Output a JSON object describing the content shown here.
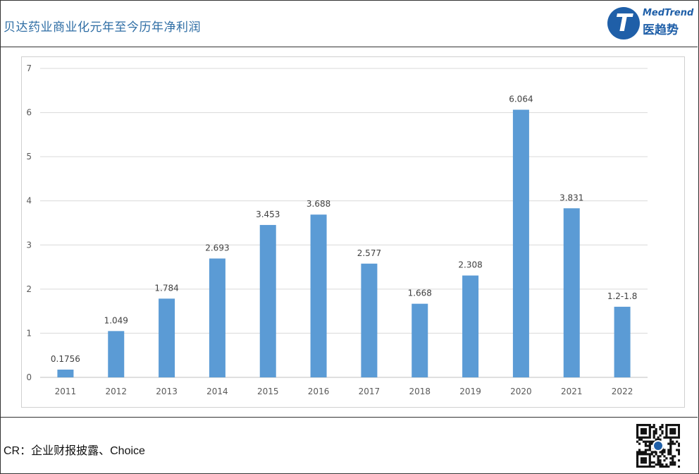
{
  "header": {
    "title": "贝达药业商业化元年至今历年净利润",
    "logo_text": "MedTrend",
    "logo_cn": "医趋势",
    "logo_glyph": "T"
  },
  "footer": {
    "source": "CR：企业财报披露、Choice"
  },
  "colors": {
    "bar": "#5b9bd5",
    "title": "#2e6da4",
    "brand": "#1f5fa8",
    "grid": "#d9d9d9"
  },
  "chart_data": {
    "type": "bar",
    "categories": [
      "2011",
      "2012",
      "2013",
      "2014",
      "2015",
      "2016",
      "2017",
      "2018",
      "2019",
      "2020",
      "2021",
      "2022"
    ],
    "values": [
      0.1756,
      1.049,
      1.784,
      2.693,
      3.453,
      3.688,
      2.577,
      1.668,
      2.308,
      6.064,
      3.831,
      1.6
    ],
    "data_labels": [
      "0.1756",
      "1.049",
      "1.784",
      "2.693",
      "3.453",
      "3.688",
      "2.577",
      "1.668",
      "2.308",
      "6.064",
      "3.831",
      "1.2-1.8"
    ],
    "yticks": [
      "0",
      "1",
      "2",
      "3",
      "4",
      "5",
      "6",
      "7"
    ],
    "ylim": [
      0,
      7
    ],
    "grid": true,
    "legend": false,
    "title": "",
    "xlabel": "",
    "ylabel": ""
  }
}
